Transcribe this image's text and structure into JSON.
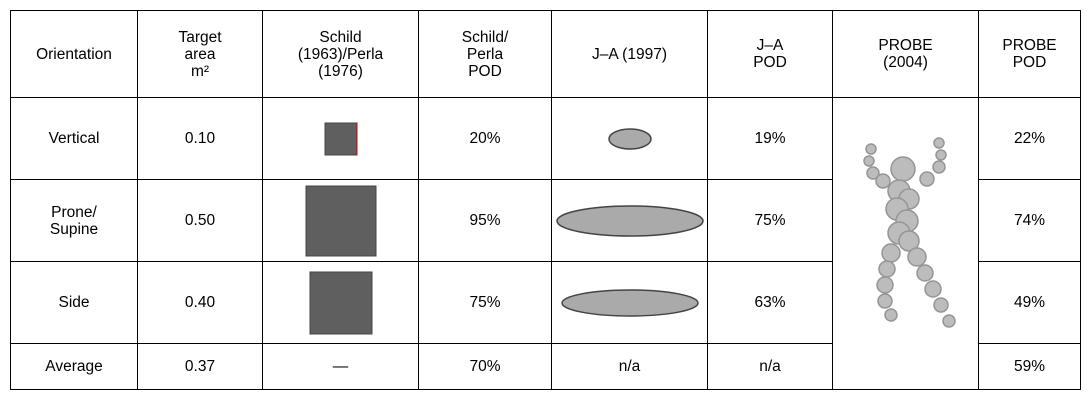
{
  "table": {
    "header": [
      "Orientation",
      "Target\narea\nm²",
      "Schild\n(1963)/Perla\n(1976)",
      "Schild/\nPerla\nPOD",
      "J–A (1997)",
      "J–A\nPOD",
      "PROBE\n(2004)",
      "PROBE\nPOD"
    ],
    "rows": [
      {
        "orientation": "Vertical",
        "target_area": "0.10",
        "schild_pod": "20%",
        "ja_pod": "19%",
        "probe_pod": "22%"
      },
      {
        "orientation": "Prone/\nSupine",
        "target_area": "0.50",
        "schild_pod": "95%",
        "ja_pod": "75%",
        "probe_pod": "74%"
      },
      {
        "orientation": "Side",
        "target_area": "0.40",
        "schild_pod": "75%",
        "ja_pod": "63%",
        "probe_pod": "49%"
      },
      {
        "orientation": "Average",
        "target_area": "0.37",
        "schild": "—",
        "schild_pod": "70%",
        "ja": "n/a",
        "ja_pod": "n/a",
        "probe_pod": "59%"
      }
    ]
  }
}
